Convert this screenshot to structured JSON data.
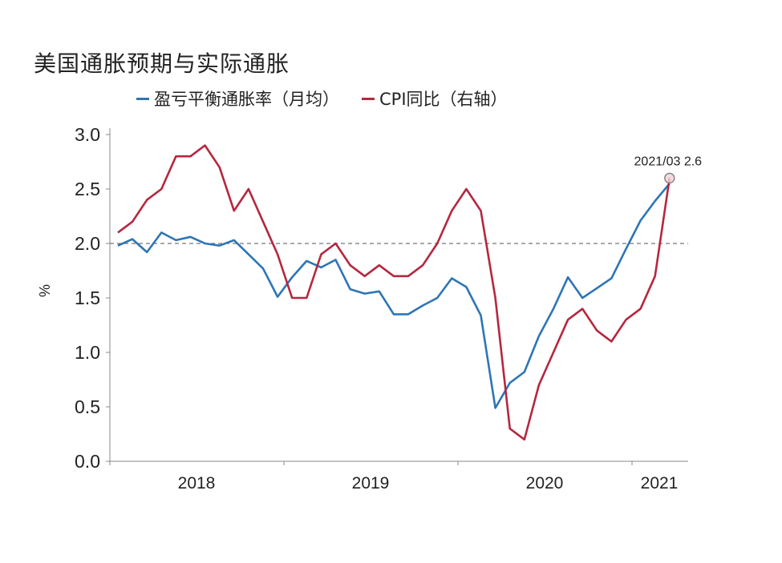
{
  "chart_data": {
    "type": "line",
    "title": "美国通胀预期与实际通胀",
    "ylabel": "%",
    "ylim": [
      0.0,
      3.0
    ],
    "yticks": [
      "0.0",
      "0.5",
      "1.0",
      "1.5",
      "2.0",
      "2.5",
      "3.0"
    ],
    "year_labels": [
      "2018",
      "2019",
      "2020",
      "2021"
    ],
    "reference_line": 2.0,
    "annotation": "2021/03 2.6",
    "annotation_value": 2.6,
    "series": [
      {
        "name": "盈亏平衡通胀率（月均）",
        "color": "#2e75b6",
        "values": [
          1.98,
          2.04,
          1.92,
          2.1,
          2.03,
          2.06,
          2.0,
          1.98,
          2.03,
          1.9,
          1.77,
          1.51,
          1.69,
          1.84,
          1.78,
          1.85,
          1.58,
          1.54,
          1.56,
          1.35,
          1.35,
          1.43,
          1.5,
          1.68,
          1.6,
          1.34,
          0.49,
          0.72,
          0.82,
          1.15,
          1.4,
          1.69,
          1.5,
          1.59,
          1.68,
          1.95,
          2.21,
          2.39,
          2.55
        ]
      },
      {
        "name": "CPI同比（右轴）",
        "color": "#b5273f",
        "values": [
          2.1,
          2.2,
          2.4,
          2.5,
          2.8,
          2.8,
          2.9,
          2.7,
          2.3,
          2.5,
          2.2,
          1.9,
          1.5,
          1.5,
          1.9,
          2.0,
          1.8,
          1.7,
          1.8,
          1.7,
          1.7,
          1.8,
          2.0,
          2.3,
          2.5,
          2.3,
          1.5,
          0.3,
          0.2,
          0.7,
          1.0,
          1.3,
          1.4,
          1.2,
          1.1,
          1.3,
          1.4,
          1.7,
          2.6
        ]
      }
    ]
  }
}
